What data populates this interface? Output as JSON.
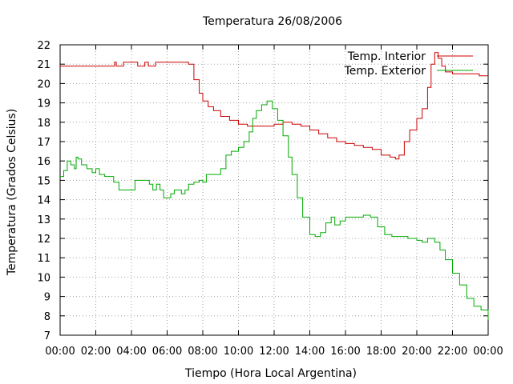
{
  "chart_data": {
    "type": "line",
    "title": "Temperatura 26/08/2006",
    "xlabel": "Tiempo (Hora Local Argentina)",
    "ylabel": "Temperatura (Grados Celsius)",
    "xlim": [
      0,
      24
    ],
    "ylim": [
      7,
      22
    ],
    "x_tick_labels": [
      "00:00",
      "02:00",
      "04:00",
      "06:00",
      "08:00",
      "10:00",
      "12:00",
      "14:00",
      "16:00",
      "18:00",
      "20:00",
      "22:00",
      "00:00"
    ],
    "y_tick_labels": [
      "7",
      "8",
      "9",
      "10",
      "11",
      "12",
      "13",
      "14",
      "15",
      "16",
      "17",
      "18",
      "19",
      "20",
      "21",
      "22"
    ],
    "grid": true,
    "legend_position": "top-right",
    "series": [
      {
        "name": "Temp. Interior",
        "color": "#cc0000",
        "points": [
          [
            0,
            20.9
          ],
          [
            0.5,
            20.9
          ],
          [
            1,
            20.9
          ],
          [
            1.5,
            20.9
          ],
          [
            2,
            20.9
          ],
          [
            2.5,
            20.9
          ],
          [
            3,
            20.9
          ],
          [
            3.05,
            21.1
          ],
          [
            3.15,
            20.9
          ],
          [
            3.5,
            20.9
          ],
          [
            3.55,
            21.1
          ],
          [
            4,
            21.1
          ],
          [
            4.3,
            21.1
          ],
          [
            4.35,
            20.9
          ],
          [
            4.7,
            20.9
          ],
          [
            4.75,
            21.1
          ],
          [
            4.9,
            21.1
          ],
          [
            4.95,
            20.9
          ],
          [
            5.3,
            20.9
          ],
          [
            5.35,
            21.1
          ],
          [
            6,
            21.1
          ],
          [
            7,
            21.1
          ],
          [
            7.2,
            21
          ],
          [
            7.5,
            20.2
          ],
          [
            7.8,
            19.5
          ],
          [
            8,
            19.1
          ],
          [
            8.3,
            18.8
          ],
          [
            8.6,
            18.6
          ],
          [
            9,
            18.3
          ],
          [
            9.5,
            18.1
          ],
          [
            10,
            17.9
          ],
          [
            10.5,
            17.8
          ],
          [
            11,
            17.8
          ],
          [
            11.5,
            17.8
          ],
          [
            12,
            17.9
          ],
          [
            12.5,
            18
          ],
          [
            13,
            17.9
          ],
          [
            13.5,
            17.8
          ],
          [
            14,
            17.6
          ],
          [
            14.5,
            17.4
          ],
          [
            15,
            17.2
          ],
          [
            15.5,
            17
          ],
          [
            16,
            16.9
          ],
          [
            16.5,
            16.8
          ],
          [
            17,
            16.7
          ],
          [
            17.5,
            16.6
          ],
          [
            18,
            16.3
          ],
          [
            18.5,
            16.2
          ],
          [
            18.8,
            16.1
          ],
          [
            19,
            16.3
          ],
          [
            19.3,
            17
          ],
          [
            19.6,
            17.6
          ],
          [
            20,
            18.2
          ],
          [
            20.3,
            18.7
          ],
          [
            20.6,
            19.8
          ],
          [
            20.8,
            21
          ],
          [
            21,
            21.6
          ],
          [
            21.2,
            21.3
          ],
          [
            21.4,
            20.9
          ],
          [
            21.6,
            20.6
          ],
          [
            22,
            20.5
          ],
          [
            22.5,
            20.5
          ],
          [
            23,
            20.5
          ],
          [
            23.5,
            20.4
          ],
          [
            24,
            20.4
          ]
        ]
      },
      {
        "name": "Temp. Exterior",
        "color": "#00aa00",
        "points": [
          [
            0,
            15.2
          ],
          [
            0.2,
            15.5
          ],
          [
            0.4,
            16
          ],
          [
            0.6,
            15.8
          ],
          [
            0.8,
            15.6
          ],
          [
            0.9,
            16.2
          ],
          [
            1,
            16.1
          ],
          [
            1.2,
            15.8
          ],
          [
            1.5,
            15.6
          ],
          [
            1.8,
            15.4
          ],
          [
            2,
            15.6
          ],
          [
            2.2,
            15.3
          ],
          [
            2.5,
            15.2
          ],
          [
            3,
            14.9
          ],
          [
            3.3,
            14.5
          ],
          [
            3.6,
            14.5
          ],
          [
            4,
            14.5
          ],
          [
            4.2,
            15
          ],
          [
            4.6,
            15
          ],
          [
            5,
            14.8
          ],
          [
            5.2,
            14.5
          ],
          [
            5.4,
            14.8
          ],
          [
            5.6,
            14.5
          ],
          [
            5.8,
            14.1
          ],
          [
            6,
            14.1
          ],
          [
            6.2,
            14.3
          ],
          [
            6.4,
            14.5
          ],
          [
            6.8,
            14.3
          ],
          [
            7,
            14.5
          ],
          [
            7.2,
            14.8
          ],
          [
            7.5,
            14.9
          ],
          [
            7.8,
            15
          ],
          [
            8,
            14.9
          ],
          [
            8.2,
            15.3
          ],
          [
            8.6,
            15.3
          ],
          [
            9,
            15.6
          ],
          [
            9.3,
            16.3
          ],
          [
            9.6,
            16.5
          ],
          [
            10,
            16.7
          ],
          [
            10.3,
            17
          ],
          [
            10.6,
            17.5
          ],
          [
            10.8,
            18.2
          ],
          [
            11,
            18.6
          ],
          [
            11.3,
            18.9
          ],
          [
            11.6,
            19.1
          ],
          [
            11.9,
            18.7
          ],
          [
            12.2,
            18.1
          ],
          [
            12.5,
            17.3
          ],
          [
            12.8,
            16.2
          ],
          [
            13,
            15.3
          ],
          [
            13.3,
            14.1
          ],
          [
            13.6,
            13.1
          ],
          [
            14,
            12.2
          ],
          [
            14.3,
            12.1
          ],
          [
            14.6,
            12.3
          ],
          [
            14.9,
            12.8
          ],
          [
            15.2,
            13.1
          ],
          [
            15.4,
            12.7
          ],
          [
            15.7,
            12.9
          ],
          [
            16,
            13.1
          ],
          [
            16.5,
            13.1
          ],
          [
            17,
            13.2
          ],
          [
            17.4,
            13.1
          ],
          [
            17.8,
            12.6
          ],
          [
            18.2,
            12.2
          ],
          [
            18.6,
            12.1
          ],
          [
            19,
            12.1
          ],
          [
            19.5,
            12
          ],
          [
            20,
            11.9
          ],
          [
            20.3,
            11.8
          ],
          [
            20.6,
            12
          ],
          [
            21,
            11.8
          ],
          [
            21.3,
            11.4
          ],
          [
            21.6,
            10.9
          ],
          [
            22,
            10.2
          ],
          [
            22.4,
            9.6
          ],
          [
            22.8,
            8.9
          ],
          [
            23.2,
            8.5
          ],
          [
            23.6,
            8.3
          ],
          [
            24,
            7.8
          ]
        ]
      }
    ]
  }
}
